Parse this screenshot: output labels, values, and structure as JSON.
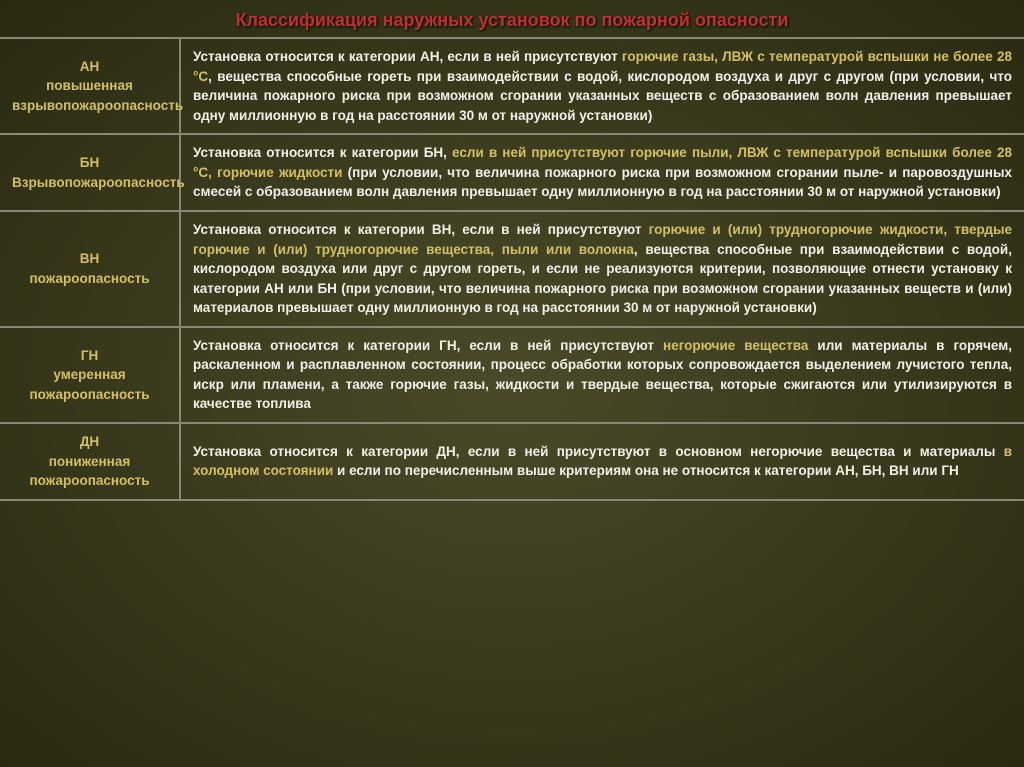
{
  "title": "Классификация наружных установок по пожарной опасности",
  "colors": {
    "title": "#c03030",
    "highlight": "#d4c060",
    "text": "#f0f0e8",
    "bg_inner": "#4a4a2a",
    "bg_outer": "#2a2a12",
    "border": "#888878"
  },
  "rows": [
    {
      "code": "АН",
      "subtitle": "повышенная взрывопожароопасность",
      "prefix": "Установка относится к категории АН, если в ней присутствуют ",
      "highlight": "горючие газы, ЛВЖ с температурой вспышки не более 28 °C",
      "suffix": ", вещества способные гореть при взаимодействии с водой, кислородом воздуха и друг с другом (при условии, что величина пожарного риска при возможном сгорании указанных веществ с образованием волн давления превышает одну миллионную в год на расстоянии 30 м от наружной установки)"
    },
    {
      "code": "БН",
      "subtitle": "Взрывопожароопасность",
      "prefix": "Установка относится к категории БН, ",
      "highlight": "если в ней присутствуют горючие пыли, ЛВЖ с температурой вспышки более 28 °C, горючие жидкости",
      "suffix": " (при условии, что величина пожарного риска при возможном сгорании пыле- и паровоздушных смесей с образованием волн давления превышает одну миллионную в год на расстоянии 30 м от наружной установки)"
    },
    {
      "code": "ВН",
      "subtitle": "пожароопасность",
      "prefix": "Установка относится к категории ВН, если в ней присутствуют ",
      "highlight": "горючие и (или) трудногорючие жидкости, твердые горючие и (или) трудногорючие вещества, пыли или волокна",
      "suffix": ", вещества способные при взаимодействии с водой, кислородом воздуха или друг с другом гореть, и если не реализуются критерии, позволяющие отнести установку к категории АН или БН (при условии, что величина пожарного риска при возможном сгорании указанных веществ и (или) материалов превышает одну миллионную в год на расстоянии 30 м от наружной установки)"
    },
    {
      "code": "ГН",
      "subtitle": "умеренная пожароопасность",
      "prefix": "Установка относится к категории ГН, если в ней присутствуют ",
      "highlight": "негорючие вещества",
      "suffix": " или материалы в горячем, раскаленном и расплавленном состоянии, процесс обработки которых сопровождается выделением лучистого тепла, искр или пламени, а также горючие газы, жидкости и твердые вещества, которые сжигаются или утилизируются в качестве топлива"
    },
    {
      "code": "ДН",
      "subtitle": "пониженная пожароопасность",
      "prefix": "Установка относится к категории ДН, если в ней присутствуют в основном негорючие вещества и материалы ",
      "highlight": "в холодном состоянии",
      "suffix": " и если по перечисленным выше критериям она не относится к категории АН, БН, ВН или ГН"
    }
  ]
}
